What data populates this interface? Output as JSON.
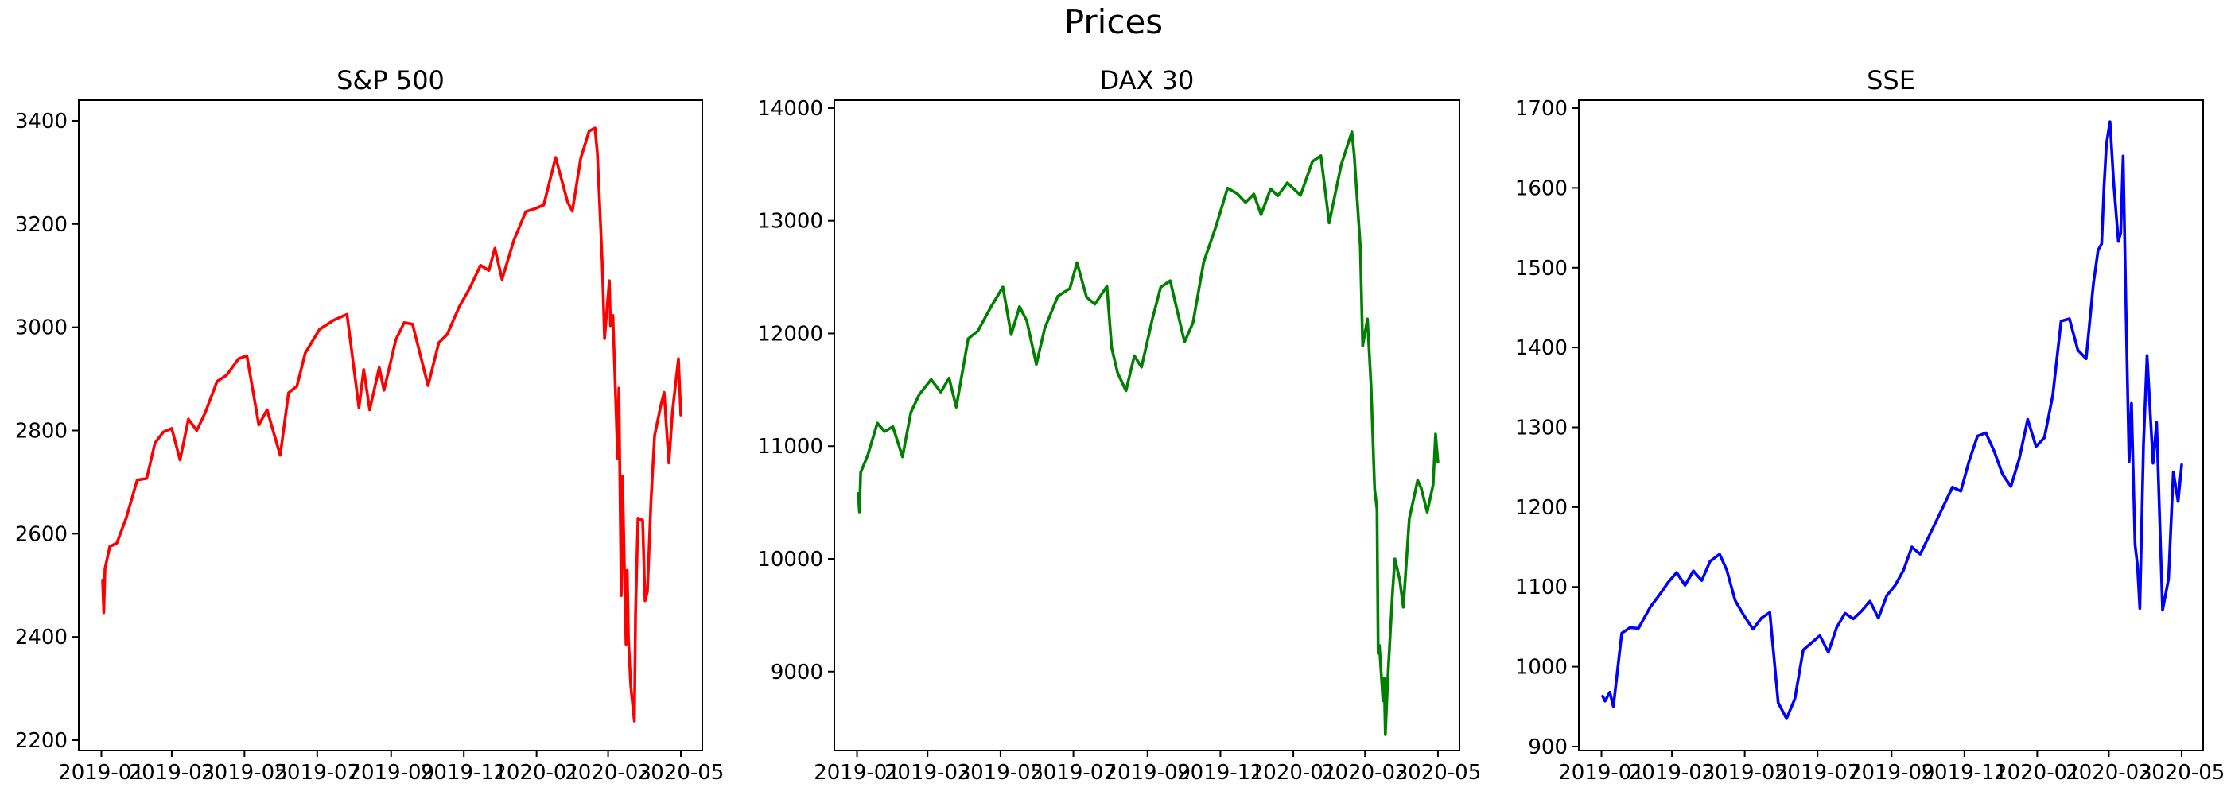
{
  "figure": {
    "title": "Prices"
  },
  "chart_data": [
    {
      "type": "line",
      "title": "S&P 500",
      "xlabel": "",
      "ylabel": "",
      "color": "#ff0000",
      "grid": false,
      "xlim": [
        "2018-12-13",
        "2020-05-19"
      ],
      "ylim": [
        2180,
        3440
      ],
      "xticks": [
        "2019-01",
        "2019-03",
        "2019-05",
        "2019-07",
        "2019-09",
        "2019-11",
        "2020-01",
        "2020-03",
        "2020-05"
      ],
      "yticks": [
        2200,
        2400,
        2600,
        2800,
        3000,
        3200,
        3400
      ],
      "series": [
        {
          "x": [
            "2019-01-02",
            "2019-01-03",
            "2019-01-04",
            "2019-01-08",
            "2019-01-14",
            "2019-01-22",
            "2019-01-31",
            "2019-02-08",
            "2019-02-15",
            "2019-02-22",
            "2019-03-01",
            "2019-03-08",
            "2019-03-15",
            "2019-03-22",
            "2019-03-29",
            "2019-04-08",
            "2019-04-16",
            "2019-04-26",
            "2019-05-03",
            "2019-05-13",
            "2019-05-20",
            "2019-05-31",
            "2019-06-07",
            "2019-06-14",
            "2019-06-21",
            "2019-07-03",
            "2019-07-15",
            "2019-07-26",
            "2019-08-05",
            "2019-08-09",
            "2019-08-14",
            "2019-08-22",
            "2019-08-26",
            "2019-09-05",
            "2019-09-12",
            "2019-09-19",
            "2019-10-02",
            "2019-10-11",
            "2019-10-18",
            "2019-10-28",
            "2019-11-06",
            "2019-11-15",
            "2019-11-22",
            "2019-11-27",
            "2019-12-03",
            "2019-12-13",
            "2019-12-23",
            "2019-12-31",
            "2020-01-07",
            "2020-01-17",
            "2020-01-27",
            "2020-01-31",
            "2020-02-07",
            "2020-02-14",
            "2020-02-19",
            "2020-02-21",
            "2020-02-25",
            "2020-02-27",
            "2020-03-02",
            "2020-03-03",
            "2020-03-05",
            "2020-03-09",
            "2020-03-10",
            "2020-03-12",
            "2020-03-13",
            "2020-03-16",
            "2020-03-17",
            "2020-03-18",
            "2020-03-20",
            "2020-03-23",
            "2020-03-24",
            "2020-03-26",
            "2020-03-30",
            "2020-04-01",
            "2020-04-03",
            "2020-04-06",
            "2020-04-09",
            "2020-04-14",
            "2020-04-17",
            "2020-04-21",
            "2020-04-24",
            "2020-04-29",
            "2020-05-01"
          ],
          "y": [
            2510,
            2447,
            2532,
            2575,
            2582,
            2632,
            2704,
            2707,
            2776,
            2797,
            2804,
            2743,
            2822,
            2800,
            2834,
            2895,
            2907,
            2939,
            2945,
            2811,
            2840,
            2752,
            2873,
            2886,
            2950,
            2996,
            3014,
            3025,
            2844,
            2918,
            2840,
            2922,
            2878,
            2976,
            3009,
            3006,
            2887,
            2970,
            2986,
            3039,
            3076,
            3120,
            3110,
            3153,
            3093,
            3169,
            3224,
            3230,
            3237,
            3329,
            3243,
            3225,
            3327,
            3380,
            3386,
            3337,
            3128,
            2978,
            3090,
            3003,
            3023,
            2746,
            2882,
            2480,
            2711,
            2386,
            2529,
            2398,
            2304,
            2237,
            2447,
            2630,
            2626,
            2470,
            2488,
            2664,
            2790,
            2846,
            2874,
            2737,
            2837,
            2939,
            2830
          ]
        }
      ]
    },
    {
      "type": "line",
      "title": "DAX 30",
      "xlabel": "",
      "ylabel": "",
      "color": "#008000",
      "grid": false,
      "xlim": [
        "2018-12-13",
        "2020-05-19"
      ],
      "ylim": [
        8300,
        14070
      ],
      "xticks": [
        "2019-01",
        "2019-03",
        "2019-05",
        "2019-07",
        "2019-09",
        "2019-11",
        "2020-01",
        "2020-03",
        "2020-05"
      ],
      "yticks": [
        9000,
        10000,
        11000,
        12000,
        13000,
        14000
      ],
      "series": [
        {
          "x": [
            "2019-01-02",
            "2019-01-03",
            "2019-01-04",
            "2019-01-10",
            "2019-01-18",
            "2019-01-24",
            "2019-01-31",
            "2019-02-08",
            "2019-02-15",
            "2019-02-22",
            "2019-03-04",
            "2019-03-12",
            "2019-03-19",
            "2019-03-25",
            "2019-04-04",
            "2019-04-12",
            "2019-04-23",
            "2019-05-03",
            "2019-05-10",
            "2019-05-17",
            "2019-05-23",
            "2019-05-31",
            "2019-06-07",
            "2019-06-18",
            "2019-06-28",
            "2019-07-04",
            "2019-07-12",
            "2019-07-19",
            "2019-07-29",
            "2019-08-02",
            "2019-08-07",
            "2019-08-14",
            "2019-08-21",
            "2019-08-27",
            "2019-09-05",
            "2019-09-12",
            "2019-09-20",
            "2019-10-02",
            "2019-10-09",
            "2019-10-18",
            "2019-10-28",
            "2019-11-07",
            "2019-11-15",
            "2019-11-22",
            "2019-11-29",
            "2019-12-05",
            "2019-12-13",
            "2019-12-19",
            "2019-12-27",
            "2020-01-07",
            "2020-01-17",
            "2020-01-24",
            "2020-01-31",
            "2020-02-10",
            "2020-02-19",
            "2020-02-21",
            "2020-02-26",
            "2020-02-28",
            "2020-03-03",
            "2020-03-06",
            "2020-03-09",
            "2020-03-11",
            "2020-03-12",
            "2020-03-13",
            "2020-03-16",
            "2020-03-17",
            "2020-03-18",
            "2020-03-20",
            "2020-03-24",
            "2020-03-26",
            "2020-03-30",
            "2020-04-02",
            "2020-04-07",
            "2020-04-14",
            "2020-04-17",
            "2020-04-22",
            "2020-04-27",
            "2020-04-29",
            "2020-05-01"
          ],
          "y": [
            10580,
            10416,
            10767,
            10922,
            11205,
            11130,
            11173,
            10906,
            11299,
            11457,
            11592,
            11480,
            11603,
            11346,
            11954,
            12020,
            12235,
            12412,
            11990,
            12238,
            12111,
            11727,
            12045,
            12331,
            12399,
            12629,
            12323,
            12260,
            12419,
            11872,
            11650,
            11492,
            11802,
            11701,
            12126,
            12410,
            12468,
            11925,
            12094,
            12634,
            12941,
            13289,
            13241,
            13163,
            13236,
            13054,
            13283,
            13222,
            13337,
            13226,
            13526,
            13577,
            12981,
            13494,
            13789,
            13579,
            12774,
            11890,
            12128,
            11541,
            10625,
            10438,
            9161,
            9232,
            8742,
            8939,
            8442,
            8929,
            9700,
            10000,
            9815,
            9571,
            10356,
            10696,
            10626,
            10415,
            10659,
            11107,
            10861
          ]
        }
      ]
    },
    {
      "type": "line",
      "title": "SSE",
      "xlabel": "",
      "ylabel": "",
      "color": "#0000ff",
      "grid": false,
      "xlim": [
        "2018-12-13",
        "2020-05-19"
      ],
      "ylim": [
        895,
        1710
      ],
      "xticks": [
        "2019-01",
        "2019-03",
        "2019-05",
        "2019-07",
        "2019-09",
        "2019-11",
        "2020-01",
        "2020-03",
        "2020-05"
      ],
      "yticks": [
        900,
        1000,
        1100,
        1200,
        1300,
        1400,
        1500,
        1600,
        1700
      ],
      "series": [
        {
          "x": [
            "2019-01-02",
            "2019-01-04",
            "2019-01-08",
            "2019-01-11",
            "2019-01-18",
            "2019-01-25",
            "2019-02-01",
            "2019-02-11",
            "2019-02-19",
            "2019-02-26",
            "2019-03-05",
            "2019-03-12",
            "2019-03-19",
            "2019-03-26",
            "2019-04-02",
            "2019-04-10",
            "2019-04-16",
            "2019-04-23",
            "2019-04-30",
            "2019-05-08",
            "2019-05-15",
            "2019-05-22",
            "2019-05-29",
            "2019-06-05",
            "2019-06-12",
            "2019-06-19",
            "2019-06-26",
            "2019-07-03",
            "2019-07-10",
            "2019-07-17",
            "2019-07-24",
            "2019-07-31",
            "2019-08-07",
            "2019-08-14",
            "2019-08-21",
            "2019-08-28",
            "2019-09-04",
            "2019-09-11",
            "2019-09-18",
            "2019-09-25",
            "2019-10-08",
            "2019-10-15",
            "2019-10-22",
            "2019-10-29",
            "2019-11-05",
            "2019-11-12",
            "2019-11-19",
            "2019-11-26",
            "2019-12-03",
            "2019-12-10",
            "2019-12-17",
            "2019-12-24",
            "2019-12-31",
            "2020-01-07",
            "2020-01-14",
            "2020-01-21",
            "2020-01-28",
            "2020-02-04",
            "2020-02-11",
            "2020-02-17",
            "2020-02-21",
            "2020-02-24",
            "2020-02-26",
            "2020-02-28",
            "2020-03-02",
            "2020-03-05",
            "2020-03-09",
            "2020-03-11",
            "2020-03-13",
            "2020-03-16",
            "2020-03-18",
            "2020-03-20",
            "2020-03-23",
            "2020-03-25",
            "2020-03-27",
            "2020-03-30",
            "2020-04-02",
            "2020-04-07",
            "2020-04-10",
            "2020-04-15",
            "2020-04-20",
            "2020-04-24",
            "2020-04-28",
            "2020-05-01"
          ],
          "y": [
            963,
            957,
            968,
            950,
            1042,
            1049,
            1048,
            1075,
            1091,
            1106,
            1118,
            1102,
            1120,
            1108,
            1132,
            1141,
            1121,
            1083,
            1065,
            1047,
            1061,
            1068,
            955,
            935,
            960,
            1021,
            1030,
            1039,
            1018,
            1049,
            1067,
            1060,
            1070,
            1082,
            1061,
            1089,
            1102,
            1121,
            1150,
            1141,
            1181,
            1203,
            1225,
            1220,
            1258,
            1289,
            1293,
            1270,
            1241,
            1226,
            1261,
            1310,
            1276,
            1287,
            1340,
            1433,
            1436,
            1397,
            1386,
            1479,
            1522,
            1530,
            1602,
            1655,
            1683,
            1608,
            1533,
            1544,
            1640,
            1401,
            1257,
            1330,
            1153,
            1127,
            1073,
            1279,
            1390,
            1255,
            1306,
            1071,
            1110,
            1244,
            1207,
            1253
          ]
        }
      ]
    }
  ]
}
